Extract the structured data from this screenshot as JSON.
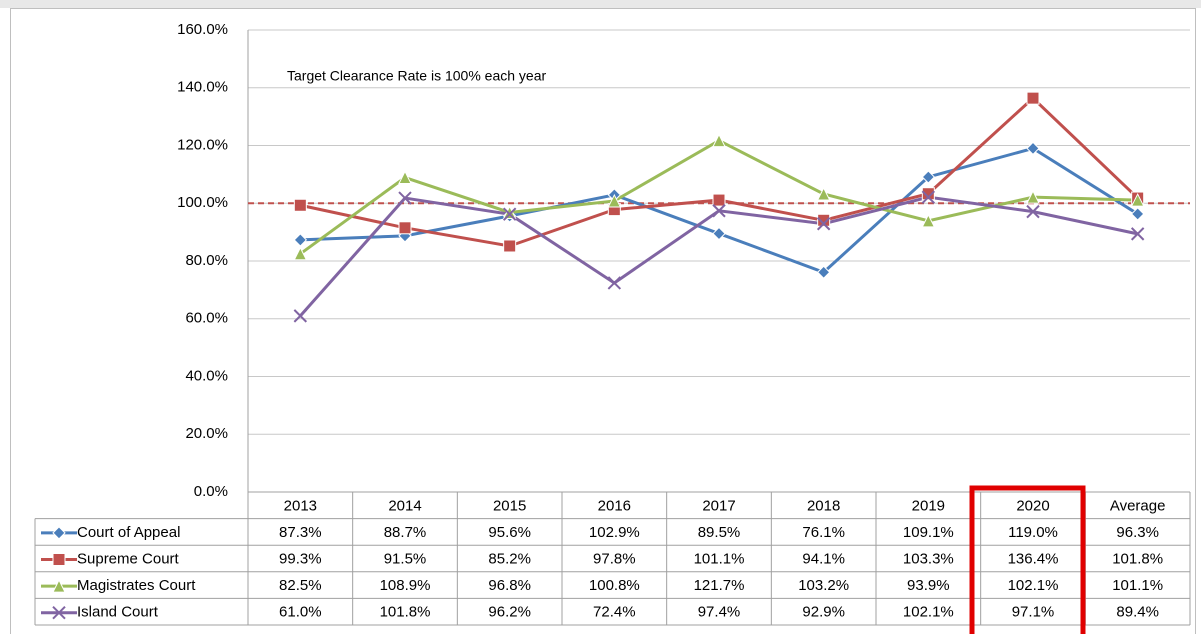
{
  "chart_data": {
    "type": "line",
    "annotation": "Target Clearance Rate is 100% each year",
    "reference_line": {
      "value": 100,
      "color": "#c0504d"
    },
    "categories": [
      "2013",
      "2014",
      "2015",
      "2016",
      "2017",
      "2018",
      "2019",
      "2020",
      "Average"
    ],
    "series": [
      {
        "name": "Court of Appeal",
        "color": "#4a7ebb",
        "marker": "diamond",
        "values": [
          87.3,
          88.7,
          95.6,
          102.9,
          89.5,
          76.1,
          109.1,
          119.0,
          96.3
        ],
        "value_labels": [
          "87.3%",
          "88.7%",
          "95.6%",
          "102.9%",
          "89.5%",
          "76.1%",
          "109.1%",
          "119.0%",
          "96.3%"
        ]
      },
      {
        "name": "Supreme Court",
        "color": "#c0504d",
        "marker": "square",
        "values": [
          99.3,
          91.5,
          85.2,
          97.8,
          101.1,
          94.1,
          103.3,
          136.4,
          101.8
        ],
        "value_labels": [
          "99.3%",
          "91.5%",
          "85.2%",
          "97.8%",
          "101.1%",
          "94.1%",
          "103.3%",
          "136.4%",
          "101.8%"
        ]
      },
      {
        "name": "Magistrates Court",
        "color": "#9bbb59",
        "marker": "triangle",
        "values": [
          82.5,
          108.9,
          96.8,
          100.8,
          121.7,
          103.2,
          93.9,
          102.1,
          101.1
        ],
        "value_labels": [
          "82.5%",
          "108.9%",
          "96.8%",
          "100.8%",
          "121.7%",
          "103.2%",
          "93.9%",
          "102.1%",
          "101.1%"
        ]
      },
      {
        "name": "Island Court",
        "color": "#8064a2",
        "marker": "x",
        "values": [
          61.0,
          101.8,
          96.2,
          72.4,
          97.4,
          92.9,
          102.1,
          97.1,
          89.4
        ],
        "value_labels": [
          "61.0%",
          "101.8%",
          "96.2%",
          "72.4%",
          "97.4%",
          "92.9%",
          "102.1%",
          "97.1%",
          "89.4%"
        ]
      }
    ],
    "ylim": [
      0,
      160
    ],
    "yticks": [
      {
        "value": 0,
        "label": "0.0%"
      },
      {
        "value": 20,
        "label": "20.0%"
      },
      {
        "value": 40,
        "label": "40.0%"
      },
      {
        "value": 60,
        "label": "60.0%"
      },
      {
        "value": 80,
        "label": "80.0%"
      },
      {
        "value": 100,
        "label": "100.0%"
      },
      {
        "value": 120,
        "label": "120.0%"
      },
      {
        "value": 140,
        "label": "140.0%"
      },
      {
        "value": 160,
        "label": "160.0%"
      }
    ],
    "grid": true
  }
}
